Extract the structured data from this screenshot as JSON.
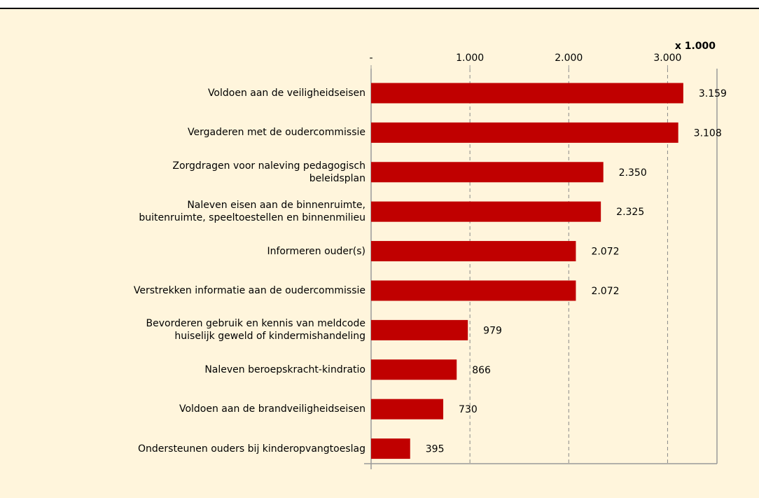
{
  "chart_data": {
    "type": "bar",
    "orientation": "horizontal",
    "axis_annotation": "x 1.000",
    "categories": [
      "Voldoen aan de veiligheidseisen",
      "Vergaderen met de oudercommissie",
      "Zorgdragen voor naleving pedagogisch\nbeleidsplan",
      "Naleven eisen aan de binnenruimte,\nbuitenruimte, speeltoestellen en binnenmilieu",
      "Informeren ouder(s)",
      "Verstrekken informatie aan de oudercommissie",
      "Bevorderen gebruik en kennis van meldcode\nhuiselijk geweld of kindermishandeling",
      "Naleven beroepskracht-kindratio",
      "Voldoen aan de brandveiligheidseisen",
      "Ondersteunen ouders bij kinderopvangtoeslag"
    ],
    "values": [
      3159,
      3108,
      2350,
      2325,
      2072,
      2072,
      979,
      866,
      730,
      395
    ],
    "value_labels": [
      "3.159",
      "3.108",
      "2.350",
      "2.325",
      "2.072",
      "2.072",
      "979",
      "866",
      "730",
      "395"
    ],
    "color": "#c00000",
    "xlim": [
      0,
      3500
    ],
    "xticks": [
      {
        "value": 0,
        "label": "-"
      },
      {
        "value": 1000,
        "label": "1.000"
      },
      {
        "value": 2000,
        "label": "2.000"
      },
      {
        "value": 3000,
        "label": "3.000"
      }
    ],
    "grid": true
  }
}
